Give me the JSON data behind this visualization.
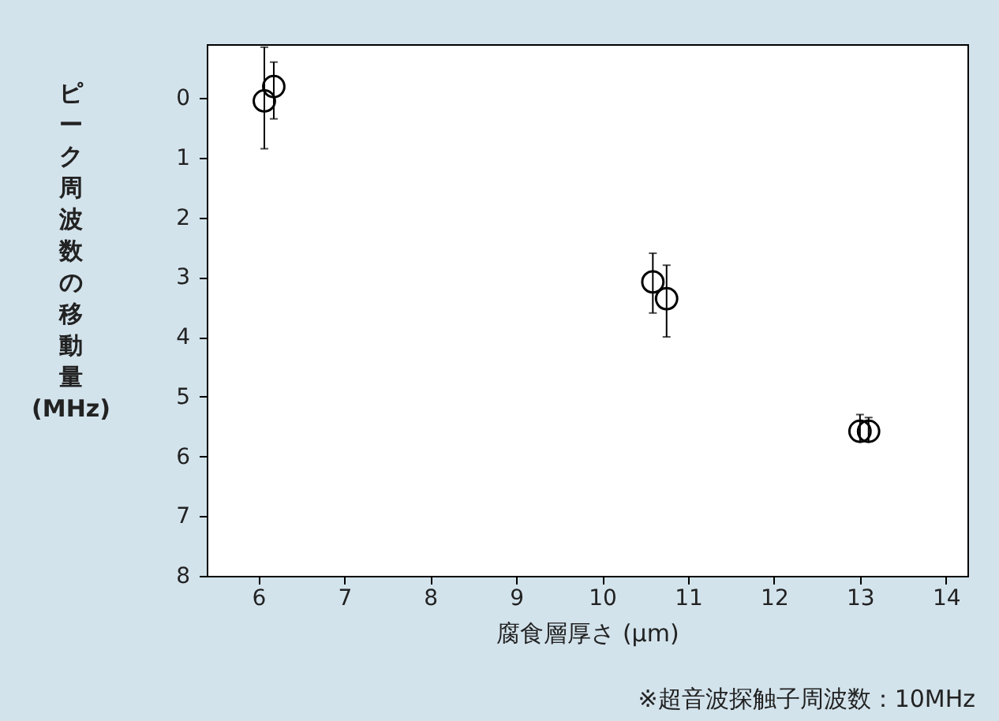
{
  "chart_data": {
    "type": "scatter",
    "xlabel": "腐食層厚さ (μm)",
    "ylabel": "ピーク周波数の移動量 (MHz)",
    "x": [
      6.07,
      6.18,
      10.59,
      10.75,
      13.0,
      13.1
    ],
    "series": [
      {
        "color": "#000000",
        "values": [
          0.05,
          -0.19,
          3.08,
          3.36,
          5.58,
          5.58
        ],
        "errors": [
          [
            -0.85,
            0.85
          ],
          [
            -0.6,
            0.35
          ],
          [
            2.6,
            3.6
          ],
          [
            2.8,
            4.0
          ],
          [
            5.3,
            5.75
          ],
          [
            5.35,
            5.75
          ]
        ]
      }
    ],
    "xlim": [
      5.4,
      14.25
    ],
    "xticks": [
      6,
      7,
      8,
      9,
      10,
      11,
      12,
      13,
      14
    ],
    "ylim": [
      8,
      -0.9
    ],
    "yticks": [
      0,
      1,
      2,
      3,
      4,
      5,
      6,
      7,
      8
    ],
    "marker": "circle",
    "grid": false,
    "legend": false,
    "annotations": [
      "※超音波探触子周波数：10MHz"
    ]
  }
}
